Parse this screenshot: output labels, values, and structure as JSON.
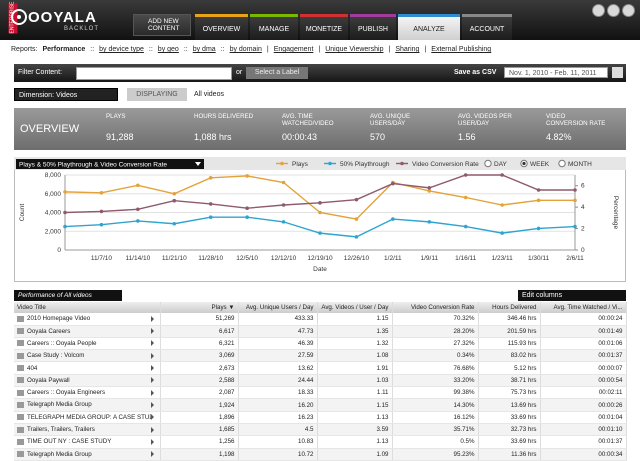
{
  "nav": {
    "logo": "OOYALA",
    "product": "BACKLOT",
    "edition": "ENTERPRISE",
    "add_button": "ADD NEW CONTENT",
    "tabs": [
      "OVERVIEW",
      "MANAGE",
      "MONETIZE",
      "PUBLISH",
      "ANALYZE",
      "ACCOUNT"
    ]
  },
  "reports": {
    "label": "Reports:",
    "items": [
      "Performance",
      "::",
      "by device type",
      "::",
      "by geo",
      "::",
      "by dma",
      "::",
      "by domain",
      "|",
      "Engagement",
      "|",
      "Unique Viewership",
      "|",
      "Sharing",
      "|",
      "External Publishing"
    ]
  },
  "filter": {
    "label": "Filter Content:",
    "or": "or",
    "label_button": "Select a Label",
    "csv": "Save as CSV",
    "date_range": "Nov. 1, 2010 - Feb. 11, 2011"
  },
  "dimension": {
    "select": "Dimension: Videos",
    "displaying": "DISPLAYING",
    "value": "All videos"
  },
  "overview": {
    "title": "OVERVIEW",
    "stats": [
      {
        "label": "PLAYS",
        "value": "91,288"
      },
      {
        "label": "HOURS DELIVERED",
        "value": "1,088 hrs"
      },
      {
        "label": "AVG. TIME WATCHED/VIDEO",
        "value": "00:00:43"
      },
      {
        "label": "AVG. UNIQUE USERS/DAY",
        "value": "570"
      },
      {
        "label": "AVG. VIDEOS PER USER/DAY",
        "value": "1.56"
      },
      {
        "label": "VIDEO CONVERSION RATE",
        "value": "4.82%"
      }
    ]
  },
  "chart_data": {
    "type": "line",
    "title": "Plays & 50% Playthrough & Video Conversion Rate",
    "x_label": "Date",
    "y_label": "Count",
    "y2_label": "Percentage",
    "categories": [
      null,
      "11/7/10",
      "11/14/10",
      "11/21/10",
      "11/28/10",
      "12/5/10",
      "12/12/10",
      "12/19/10",
      "12/26/10",
      "1/2/11",
      "1/9/11",
      "1/16/11",
      "1/23/11",
      "1/30/11",
      "2/6/11"
    ],
    "series": [
      {
        "name": "Plays",
        "color": "#e3a23a",
        "values": [
          6200,
          6100,
          6900,
          6000,
          7700,
          7900,
          7200,
          4000,
          3300,
          7200,
          6300,
          5600,
          4800,
          5300,
          5300
        ]
      },
      {
        "name": "50% Playthrough",
        "color": "#2ea5cf",
        "values": [
          2500,
          2700,
          3100,
          2800,
          3500,
          3500,
          3000,
          1800,
          1400,
          3300,
          3000,
          2500,
          1800,
          2300,
          2500
        ]
      },
      {
        "name": "Video Conversion Rate",
        "color": "#8e5a6e",
        "axis": "y2",
        "values": [
          3.5,
          3.6,
          3.8,
          4.6,
          4.3,
          3.9,
          4.2,
          4.4,
          4.7,
          6.2,
          5.8,
          7.0,
          7.0,
          5.6,
          5.6
        ]
      }
    ],
    "ylim": [
      0,
      8000
    ],
    "yticks": [
      0,
      {
        "value": 2000,
        "label": "2,000"
      },
      {
        "value": 4000,
        "label": "4,000"
      },
      {
        "value": 6000,
        "label": "6,000"
      },
      {
        "value": 8000,
        "label": "8,000"
      }
    ],
    "y2lim": [
      0,
      7
    ],
    "y2ticks": [
      0,
      2,
      4,
      6
    ],
    "grid": true,
    "intervals": [
      "DAY",
      "WEEK",
      "MONTH"
    ],
    "selected_interval": "WEEK"
  },
  "table": {
    "caption": "Performance of All videos",
    "edit": "Edit columns",
    "columns": [
      "Video Title",
      "Plays ▼",
      "Avg. Unique Users / Day",
      "Avg. Videos / User / Day",
      "Video Conversion Rate",
      "Hours Delivered",
      "Avg. Time Watched / Vi..."
    ],
    "rows": [
      [
        "2010 Homepage Video",
        "51,269",
        "433.33",
        "1.15",
        "70.32%",
        "346.46 hrs",
        "00:00:24"
      ],
      [
        "Ooyala Careers",
        "6,617",
        "47.73",
        "1.35",
        "28.20%",
        "201.59 hrs",
        "00:01:49"
      ],
      [
        "Careers :: Ooyala People",
        "6,321",
        "46.39",
        "1.32",
        "27.32%",
        "115.93 hrs",
        "00:01:06"
      ],
      [
        "Case Study : Volcom",
        "3,069",
        "27.59",
        "1.08",
        "0.34%",
        "83.02 hrs",
        "00:01:37"
      ],
      [
        "404",
        "2,673",
        "13.62",
        "1.91",
        "76.68%",
        "5.12 hrs",
        "00:00:07"
      ],
      [
        "Ooyala Paywall",
        "2,588",
        "24.44",
        "1.03",
        "33.20%",
        "38.71 hrs",
        "00:00:54"
      ],
      [
        "Careers :: Ooyala Engineers",
        "2,087",
        "18.33",
        "1.11",
        "99.38%",
        "75.73 hrs",
        "00:02:11"
      ],
      [
        "Telegraph Media Group",
        "1,924",
        "16.20",
        "1.15",
        "14.30%",
        "13.69 hrs",
        "00:00:26"
      ],
      [
        "TELEGRAPH MEDIA GROUP: A CASE STUDY",
        "1,896",
        "16.23",
        "1.13",
        "16.12%",
        "33.69 hrs",
        "00:01:04"
      ],
      [
        "Trailers, Trailers, Trailers",
        "1,685",
        "4.5",
        "3.59",
        "35.71%",
        "32.73 hrs",
        "00:01:10"
      ],
      [
        "TIME OUT NY : CASE STUDY",
        "1,256",
        "10.83",
        "1.13",
        "0.5%",
        "33.69 hrs",
        "00:01:37"
      ],
      [
        "Telegraph Media Group",
        "1,198",
        "10.72",
        "1.09",
        "95.23%",
        "11.36 hrs",
        "00:00:34"
      ]
    ]
  }
}
